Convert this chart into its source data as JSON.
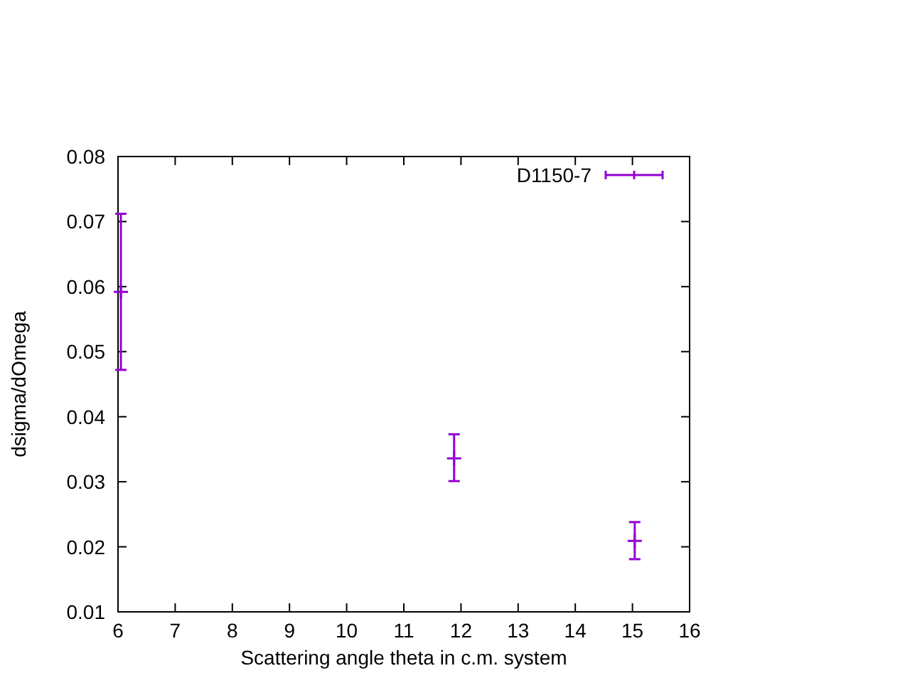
{
  "chart_data": {
    "type": "scatter",
    "xlabel": "Scattering angle theta in c.m. system",
    "ylabel": "dsigma/dOmega",
    "x": [
      6.05,
      11.88,
      15.04
    ],
    "series": [
      {
        "name": "D1150-7",
        "color": "#9400d3",
        "values": [
          0.0592,
          0.0336,
          0.0209
        ],
        "errors": [
          [
            0.0472,
            0.0712
          ],
          [
            0.0301,
            0.0373
          ],
          [
            0.0181,
            0.0238
          ]
        ]
      }
    ],
    "xlim": [
      6,
      16
    ],
    "xticks": [
      6,
      7,
      8,
      9,
      10,
      11,
      12,
      13,
      14,
      15,
      16
    ],
    "ylim": [
      0.01,
      0.08
    ],
    "yticks": [
      0.01,
      0.02,
      0.03,
      0.04,
      0.05,
      0.06,
      0.07,
      0.08
    ],
    "legend": "top right",
    "grid": false,
    "marker": "cross"
  }
}
